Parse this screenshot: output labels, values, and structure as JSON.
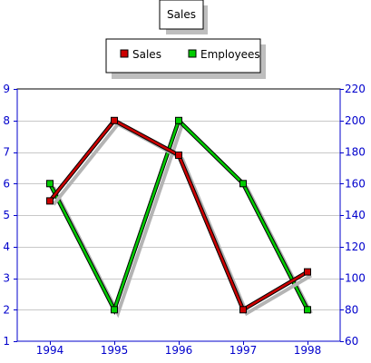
{
  "chart_data": {
    "type": "line",
    "title": "Sales",
    "categories": [
      "1994",
      "1995",
      "1996",
      "1997",
      "1998"
    ],
    "series": [
      {
        "name": "Sales",
        "axis": "left",
        "color": "#cc0000",
        "values": [
          5.45,
          8.0,
          6.9,
          2.0,
          3.2
        ]
      },
      {
        "name": "Employees",
        "axis": "right",
        "color": "#00cc00",
        "values": [
          160,
          80,
          200,
          160,
          80
        ]
      }
    ],
    "y_left": {
      "min": 1,
      "max": 9,
      "ticks": [
        1,
        2,
        3,
        4,
        5,
        6,
        7,
        8,
        9
      ],
      "tick_labels": [
        "1",
        "2",
        "3",
        "4",
        "5",
        "6",
        "7",
        "8",
        "9"
      ]
    },
    "y_right": {
      "min": 60,
      "max": 220,
      "ticks": [
        60,
        80,
        100,
        120,
        140,
        160,
        180,
        200,
        220
      ],
      "tick_labels": [
        "60",
        "80",
        "100",
        "120",
        "140",
        "160",
        "180",
        "200",
        "220"
      ]
    },
    "grid": true,
    "legend_position": "top-center",
    "axis_text_color": "#0000cc"
  }
}
